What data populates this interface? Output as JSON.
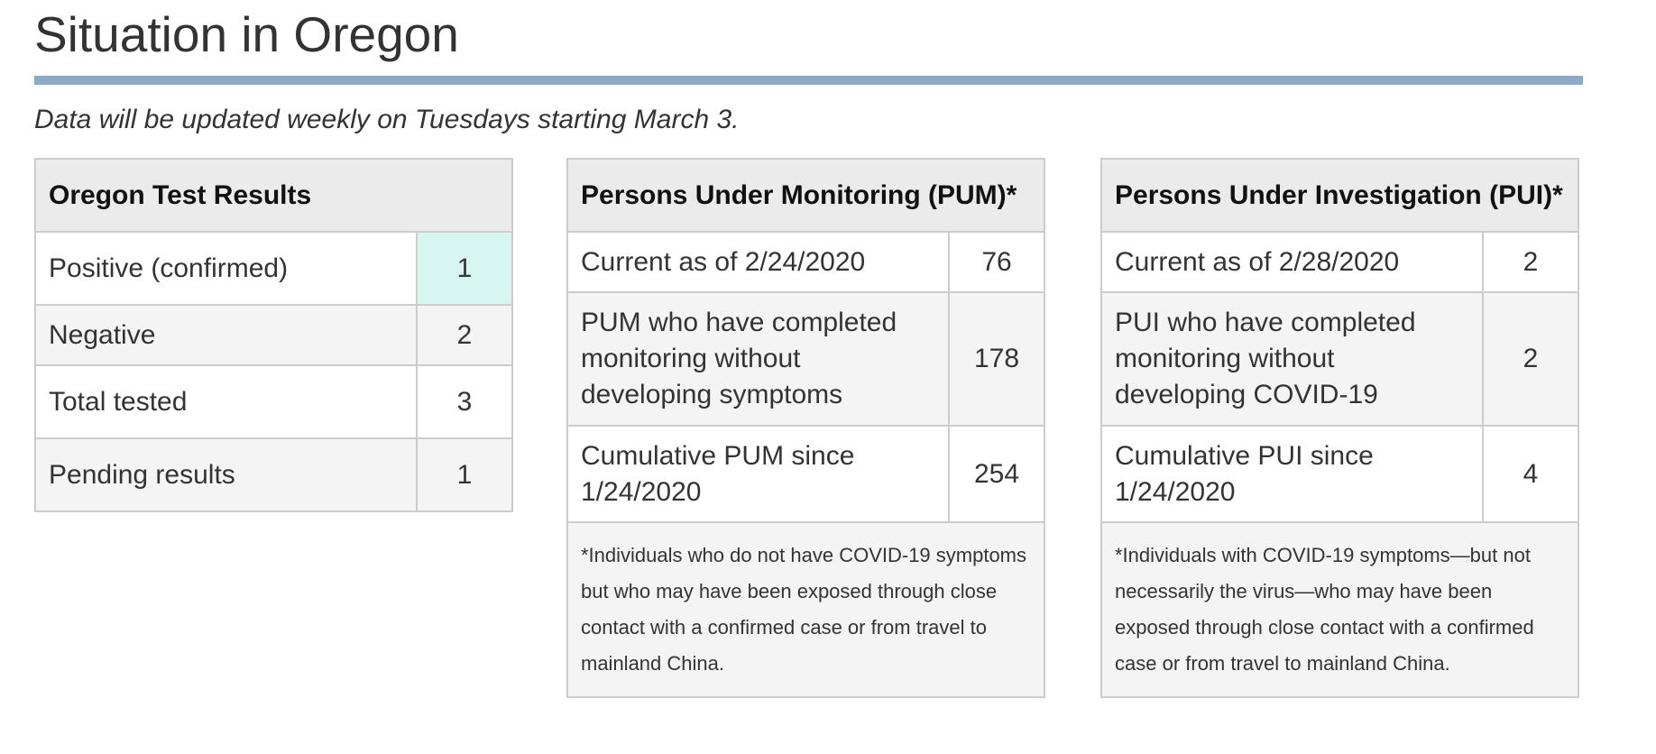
{
  "page": {
    "title": "Situation in Oregon",
    "subtitle": "Data will be updated weekly on Tuesdays starting March 3."
  },
  "colors": {
    "rule": "#8aaac8",
    "header_bg": "#ebebeb",
    "alt_row_bg": "#f4f4f4",
    "highlight": "#d8f6f1",
    "border": "#cccccc"
  },
  "tests": {
    "header": "Oregon Test Results",
    "rows": [
      {
        "label": "Positive (confirmed)",
        "value": "1"
      },
      {
        "label": "Negative",
        "value": "2"
      },
      {
        "label": "Total tested",
        "value": "3"
      },
      {
        "label": "Pending results",
        "value": "1"
      }
    ]
  },
  "pum": {
    "header": "Persons Under Monitoring (PUM)*",
    "rows": [
      {
        "label": "Current as of 2/24/2020",
        "value": "76"
      },
      {
        "label": "PUM who have completed monitoring without developing symptoms",
        "value": "178"
      },
      {
        "label": "Cumulative PUM since 1/24/2020",
        "value": "254"
      }
    ],
    "footnote": "*Individuals who do not have COVID-19 symptoms but who may have been exposed through close contact with a confirmed case or from travel to mainland China."
  },
  "pui": {
    "header": "Persons Under Investigation (PUI)*",
    "rows": [
      {
        "label": "Current as of 2/28/2020",
        "value": "2"
      },
      {
        "label": "PUI who have completed monitoring without developing COVID-19",
        "value": "2"
      },
      {
        "label": "Cumulative PUI since 1/24/2020",
        "value": "4"
      }
    ],
    "footnote": "*Individuals with COVID-19 symptoms—but not necessarily the virus—who may have been exposed through close contact with a confirmed case or from travel to mainland China."
  }
}
